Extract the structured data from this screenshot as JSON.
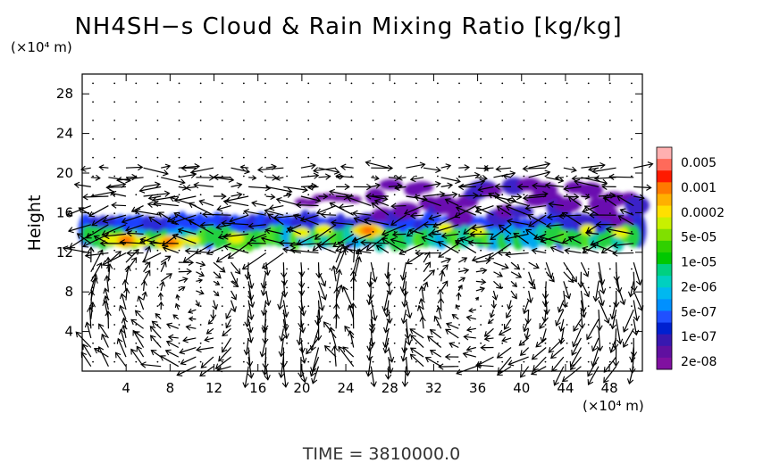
{
  "chart_data": {
    "type": "heatmap",
    "title": "NH4SH−s Cloud & Rain Mixing Ratio [kg/kg]",
    "ylabel": "Height",
    "y_unit": "(×10⁴ m)",
    "x_unit": "(×10⁴ m)",
    "xlim": [
      0,
      51
    ],
    "ylim": [
      0,
      30
    ],
    "x_ticks": [
      "4",
      "8",
      "12",
      "16",
      "20",
      "24",
      "28",
      "32",
      "36",
      "40",
      "44",
      "48"
    ],
    "x_tick_values": [
      4,
      8,
      12,
      16,
      20,
      24,
      28,
      32,
      36,
      40,
      44,
      48
    ],
    "y_ticks": [
      "4",
      "8",
      "12",
      "16",
      "20",
      "24",
      "28"
    ],
    "y_tick_values": [
      4,
      8,
      12,
      16,
      20,
      24,
      28
    ],
    "colorbar": {
      "labels": [
        "0.005",
        "0.001",
        "0.0002",
        "5e-05",
        "1e-05",
        "2e-06",
        "5e-07",
        "1e-07",
        "2e-08"
      ],
      "colors": [
        "#ffb0b0",
        "#ff6a5a",
        "#ff1a00",
        "#ff7a00",
        "#ffb000",
        "#ffe000",
        "#c8f000",
        "#80e000",
        "#30d000",
        "#00c800",
        "#00d080",
        "#00d0c0",
        "#00b8f0",
        "#0090ff",
        "#2050ff",
        "#0020d0",
        "#3818b0",
        "#6010a0",
        "#8010a0"
      ]
    },
    "cloud_layer": {
      "main_band_height": [
        12.5,
        16
      ],
      "upper_band_x": [
        26,
        51
      ],
      "upper_band_height": [
        15,
        19
      ],
      "peak_regions": [
        {
          "x": 4,
          "height": 13.2,
          "level": "0.0002"
        },
        {
          "x": 8,
          "height": 13.0,
          "level": "0.0002"
        },
        {
          "x": 26,
          "height": 14.2,
          "level": "0.0002"
        }
      ]
    },
    "wind_vectors": "overlaid arrow field",
    "grid": false,
    "legend": "right"
  },
  "footer": {
    "time_text": "TIME = 3810000.0"
  }
}
